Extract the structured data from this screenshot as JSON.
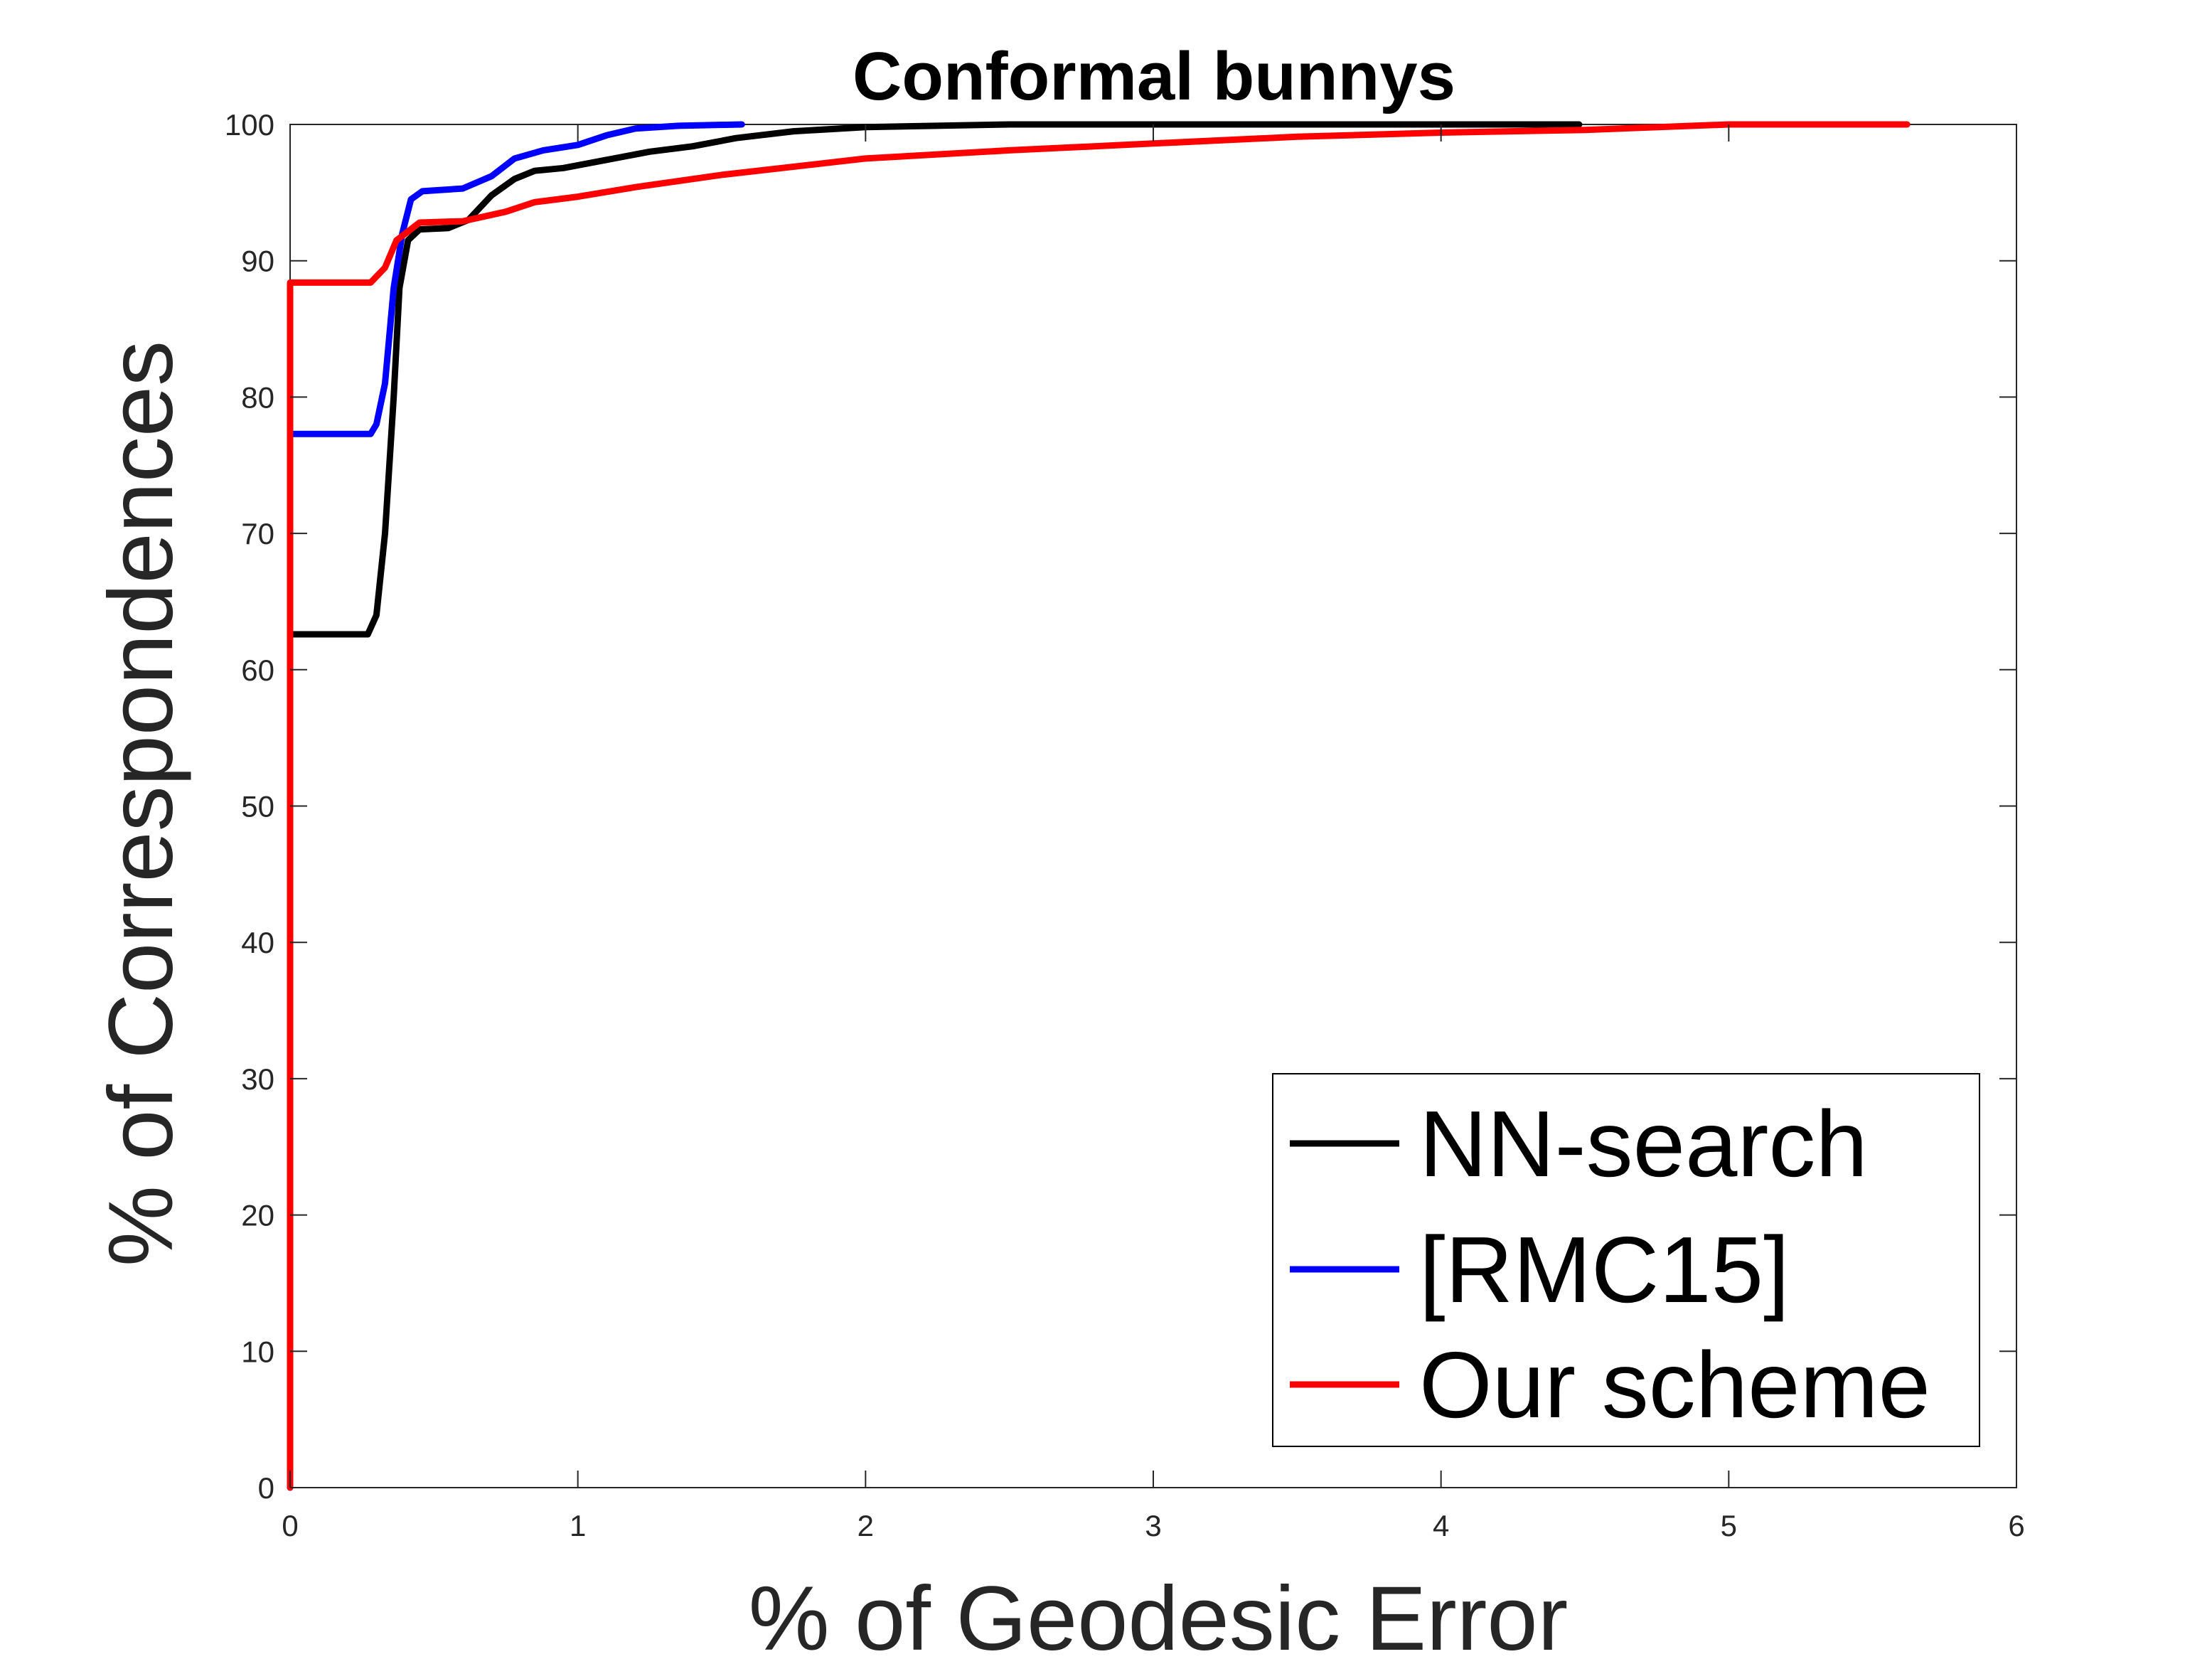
{
  "chart_data": {
    "type": "line",
    "title": "Conformal bunnys",
    "xlabel": "% of Geodesic Error",
    "ylabel": "% of Correspondences",
    "xlim": [
      0,
      6
    ],
    "ylim": [
      0,
      100
    ],
    "xticks": [
      0,
      1,
      2,
      3,
      4,
      5,
      6
    ],
    "yticks": [
      0,
      10,
      20,
      30,
      40,
      50,
      60,
      70,
      80,
      90,
      100
    ],
    "grid": false,
    "legend_position": "bottom-right",
    "series": [
      {
        "name": "NN-search",
        "color": "#000000",
        "points": [
          [
            0,
            0
          ],
          [
            0,
            62.6
          ],
          [
            0.27,
            62.6
          ],
          [
            0.3,
            64
          ],
          [
            0.33,
            70
          ],
          [
            0.36,
            80
          ],
          [
            0.38,
            88
          ],
          [
            0.41,
            91.5
          ],
          [
            0.45,
            92.3
          ],
          [
            0.55,
            92.4
          ],
          [
            0.62,
            93
          ],
          [
            0.7,
            94.8
          ],
          [
            0.78,
            96
          ],
          [
            0.85,
            96.6
          ],
          [
            0.95,
            96.8
          ],
          [
            1.1,
            97.4
          ],
          [
            1.25,
            98
          ],
          [
            1.4,
            98.4
          ],
          [
            1.55,
            99
          ],
          [
            1.75,
            99.5
          ],
          [
            2.0,
            99.8
          ],
          [
            2.5,
            100
          ],
          [
            3.0,
            100
          ],
          [
            4.48,
            100
          ]
        ]
      },
      {
        "name": "[RMC15]",
        "color": "#0000ff",
        "points": [
          [
            0,
            0
          ],
          [
            0,
            77.3
          ],
          [
            0.28,
            77.3
          ],
          [
            0.3,
            78
          ],
          [
            0.33,
            81
          ],
          [
            0.36,
            88
          ],
          [
            0.39,
            92
          ],
          [
            0.42,
            94.5
          ],
          [
            0.46,
            95.1
          ],
          [
            0.6,
            95.3
          ],
          [
            0.7,
            96.2
          ],
          [
            0.78,
            97.5
          ],
          [
            0.88,
            98.1
          ],
          [
            1.0,
            98.5
          ],
          [
            1.1,
            99.2
          ],
          [
            1.2,
            99.7
          ],
          [
            1.35,
            99.9
          ],
          [
            1.57,
            100
          ]
        ]
      },
      {
        "name": "Our scheme",
        "color": "#ff0000",
        "points": [
          [
            0,
            0
          ],
          [
            0,
            88.4
          ],
          [
            0.28,
            88.4
          ],
          [
            0.33,
            89.5
          ],
          [
            0.37,
            91.5
          ],
          [
            0.45,
            92.8
          ],
          [
            0.6,
            92.9
          ],
          [
            0.75,
            93.6
          ],
          [
            0.85,
            94.3
          ],
          [
            1.0,
            94.7
          ],
          [
            1.2,
            95.4
          ],
          [
            1.5,
            96.3
          ],
          [
            2.0,
            97.5
          ],
          [
            2.5,
            98.1
          ],
          [
            3.0,
            98.6
          ],
          [
            3.5,
            99.1
          ],
          [
            4.0,
            99.4
          ],
          [
            4.5,
            99.6
          ],
          [
            5.0,
            100
          ],
          [
            5.62,
            100
          ]
        ]
      }
    ]
  }
}
